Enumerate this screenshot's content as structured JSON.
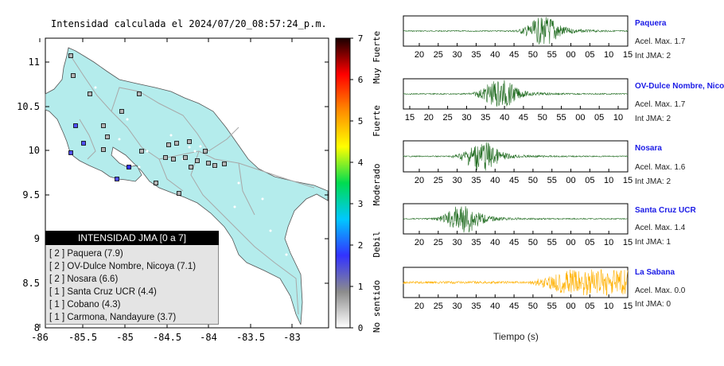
{
  "map": {
    "title": "Intensidad calculada el 2024/07/20_08:57:24_p.m.",
    "lon_ticks": [
      "-86",
      "-85.5",
      "-85",
      "-84.5",
      "-84",
      "-83.5",
      "-83"
    ],
    "lat_ticks": [
      "11",
      "10.5",
      "10",
      "9.5",
      "9",
      "8.5",
      "8"
    ],
    "land_color": "#b4ecec",
    "sea_color": "#ffffff"
  },
  "colorbar": {
    "ticks": [
      "0",
      "1",
      "2",
      "3",
      "4",
      "5",
      "6",
      "7"
    ],
    "labels": [
      "No sentido",
      "Debil",
      "Moderado",
      "Fuerte",
      "Muy Fuerte"
    ],
    "colors": [
      "#ffffff",
      "#8c8c8c",
      "#3232ff",
      "#00c8ff",
      "#00dc50",
      "#ffff00",
      "#ff8c00",
      "#ff0000",
      "#1a0000"
    ]
  },
  "legend": {
    "title": "INTENSIDAD JMA [0 a 7]",
    "items": [
      "[ 2 ] Paquera (7.9)",
      "[ 2 ] OV-Dulce Nombre, Nicoya (7.1)",
      "[ 2 ] Nosara (6.6)",
      "[ 1 ] Santa Cruz UCR (4.4)",
      "[ 1 ] Cobano (4.3)",
      "[ 1 ] Carmona, Nandayure (3.7)"
    ]
  },
  "stations": [
    {
      "name": "Paquera",
      "acel": "Acel. Max. 1.7",
      "int": "Int JMA: 2",
      "color": "#1f6b1f",
      "ticks": [
        "20",
        "25",
        "30",
        "35",
        "40",
        "45",
        "50",
        "55",
        "00",
        "05",
        "10",
        "15"
      ],
      "burst": 0.62
    },
    {
      "name": "OV-Dulce Nombre, Nicoya",
      "acel": "Acel. Max. 1.7",
      "int": "Int JMA: 2",
      "color": "#1f6b1f",
      "ticks": [
        "15",
        "20",
        "25",
        "30",
        "35",
        "40",
        "45",
        "50",
        "55",
        "00",
        "05",
        "10"
      ],
      "burst": 0.42
    },
    {
      "name": "Nosara",
      "acel": "Acel. Max. 1.6",
      "int": "Int JMA: 2",
      "color": "#1f6b1f",
      "ticks": [
        "20",
        "25",
        "30",
        "35",
        "40",
        "45",
        "50",
        "55",
        "00",
        "05",
        "10",
        "15"
      ],
      "burst": 0.34
    },
    {
      "name": "Santa Cruz UCR",
      "acel": "Acel. Max. 1.4",
      "int": "Int JMA: 1",
      "color": "#1f6b1f",
      "ticks": [
        "20",
        "25",
        "30",
        "35",
        "40",
        "45",
        "50",
        "55",
        "00",
        "05",
        "10",
        "15"
      ],
      "burst": 0.26
    },
    {
      "name": "La Sabana",
      "acel": "Acel. Max. 0.0",
      "int": "Int JMA: 0",
      "color": "#ffb000",
      "ticks": [
        "20",
        "25",
        "30",
        "35",
        "40",
        "45",
        "50",
        "55",
        "00",
        "05",
        "10",
        "15"
      ],
      "burst": 0.78
    }
  ],
  "seismogram_xlabel": "Tiempo (s)"
}
